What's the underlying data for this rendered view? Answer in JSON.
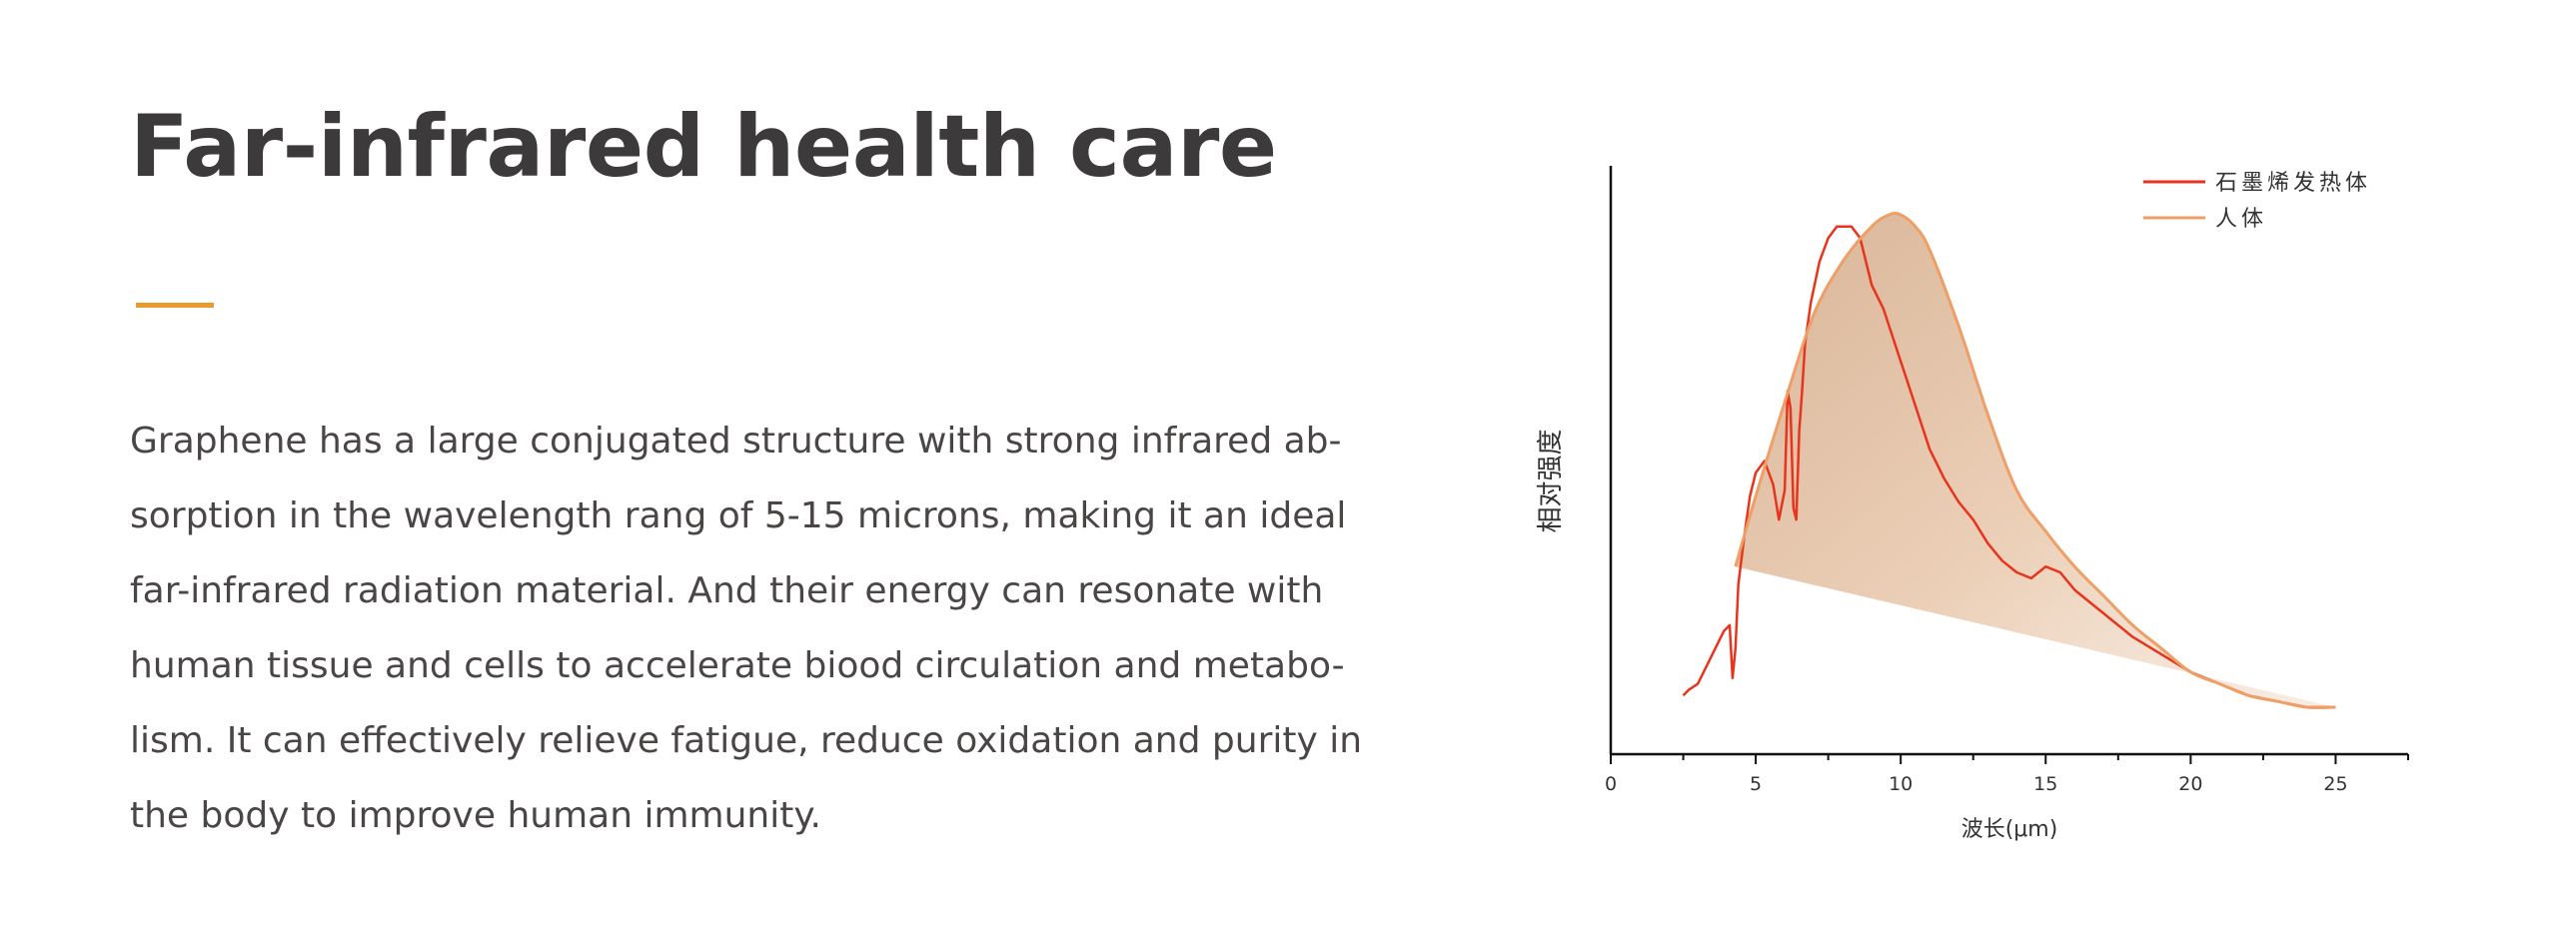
{
  "page": {
    "title": "Far-infrared health care",
    "accent_color": "#e89a2c",
    "paragraph_lines": [
      "Graphene has a large conjugated structure with strong infrared ab-",
      "sorption in the wavelength rang of 5-15 microns, making it an ideal",
      "far-infrared radiation material. And their energy can resonate with",
      "human tissue and cells to accelerate biood circulation and metabo-",
      "lism. It can effectively relieve fatigue, reduce oxidation and purity in",
      "the body to improve human immunity."
    ]
  },
  "chart_data": {
    "type": "line",
    "xlabel": "波长(μm)",
    "ylabel": "相对强度",
    "xlim": [
      0,
      27.5
    ],
    "ylim": [
      0,
      1
    ],
    "xticks": [
      0,
      5,
      10,
      15,
      20,
      25
    ],
    "legend_position": "top-right",
    "series": [
      {
        "name": "石墨烯发热体",
        "color": "#e8341c",
        "x": [
          2.5,
          2.7,
          3.0,
          3.3,
          3.6,
          3.9,
          4.1,
          4.2,
          4.3,
          4.4,
          4.6,
          4.8,
          5.0,
          5.3,
          5.6,
          5.8,
          6.0,
          6.1,
          6.2,
          6.3,
          6.4,
          6.5,
          6.6,
          6.7,
          6.9,
          7.2,
          7.5,
          7.8,
          8.0,
          8.3,
          8.6,
          8.8,
          9.0,
          9.4,
          9.8,
          10.2,
          10.6,
          11.0,
          11.5,
          12.0,
          12.5,
          13.0,
          13.5,
          14.0,
          14.5,
          15.0,
          15.5,
          16.0,
          16.5,
          17.0,
          18.0,
          19.0,
          20.0,
          21.0,
          22.0,
          23.0,
          24.0,
          25.0
        ],
        "y": [
          0.1,
          0.11,
          0.12,
          0.15,
          0.18,
          0.21,
          0.22,
          0.13,
          0.18,
          0.29,
          0.37,
          0.44,
          0.48,
          0.5,
          0.46,
          0.4,
          0.45,
          0.62,
          0.59,
          0.42,
          0.4,
          0.55,
          0.62,
          0.7,
          0.77,
          0.84,
          0.88,
          0.9,
          0.9,
          0.9,
          0.88,
          0.84,
          0.8,
          0.76,
          0.7,
          0.64,
          0.58,
          0.52,
          0.47,
          0.43,
          0.4,
          0.36,
          0.33,
          0.31,
          0.3,
          0.32,
          0.31,
          0.28,
          0.26,
          0.24,
          0.2,
          0.17,
          0.14,
          0.12,
          0.1,
          0.09,
          0.08,
          0.08
        ]
      },
      {
        "name": "人体",
        "color": "#ee9f66",
        "x": [
          4.3,
          5.0,
          6.0,
          7.0,
          8.0,
          9.0,
          9.6,
          10.0,
          10.5,
          11.0,
          12.0,
          13.0,
          14.0,
          15.0,
          16.0,
          17.0,
          18.0,
          19.0,
          20.0,
          21.0,
          22.0,
          23.0,
          24.0,
          25.0
        ],
        "y": [
          0.32,
          0.44,
          0.6,
          0.75,
          0.84,
          0.9,
          0.92,
          0.92,
          0.9,
          0.86,
          0.73,
          0.58,
          0.45,
          0.38,
          0.32,
          0.27,
          0.22,
          0.18,
          0.14,
          0.12,
          0.1,
          0.09,
          0.08,
          0.08
        ]
      }
    ]
  }
}
